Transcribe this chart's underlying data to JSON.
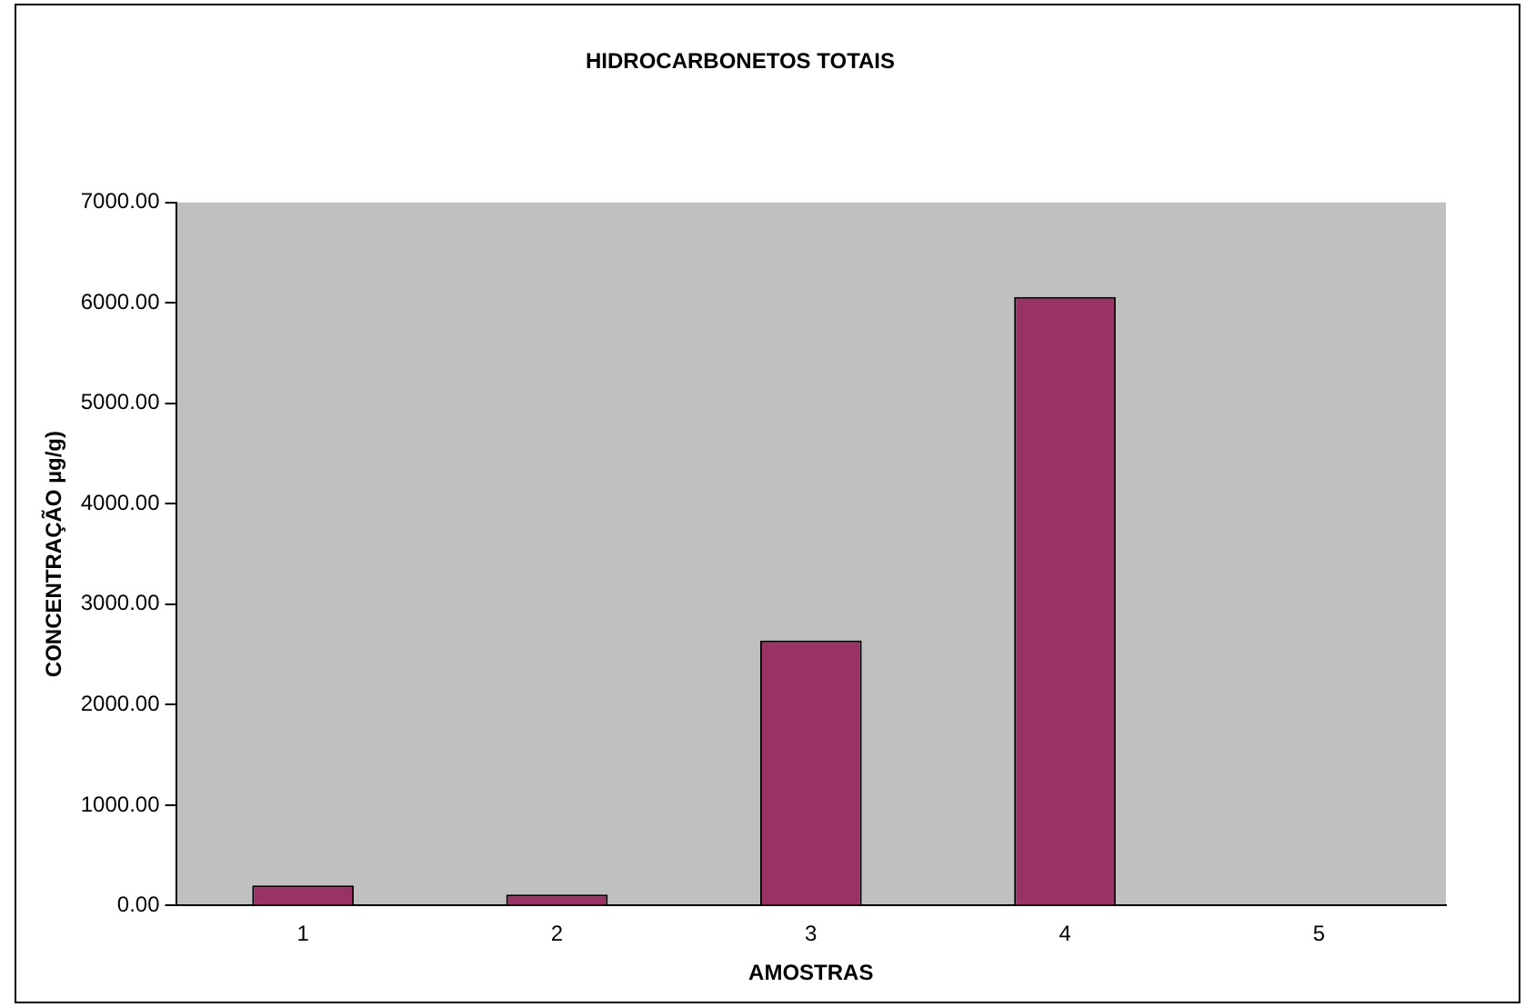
{
  "chart_data": {
    "type": "bar",
    "title": "HIDROCARBONETOS TOTAIS",
    "xlabel": "AMOSTRAS",
    "ylabel": "CONCENTRAÇÃO µg/g)",
    "categories": [
      "1",
      "2",
      "3",
      "4",
      "5"
    ],
    "values": [
      200,
      110,
      2640,
      6060,
      0
    ],
    "color": "#993366",
    "ylim": [
      0,
      7000
    ],
    "yticks": [
      {
        "value": 0,
        "label": "0.00"
      },
      {
        "value": 1000,
        "label": "1000.00"
      },
      {
        "value": 2000,
        "label": "2000.00"
      },
      {
        "value": 3000,
        "label": "3000.00"
      },
      {
        "value": 4000,
        "label": "4000.00"
      },
      {
        "value": 5000,
        "label": "5000.00"
      },
      {
        "value": 6000,
        "label": "6000.00"
      },
      {
        "value": 7000,
        "label": "7000.00"
      }
    ],
    "grid": false,
    "legend": false
  }
}
